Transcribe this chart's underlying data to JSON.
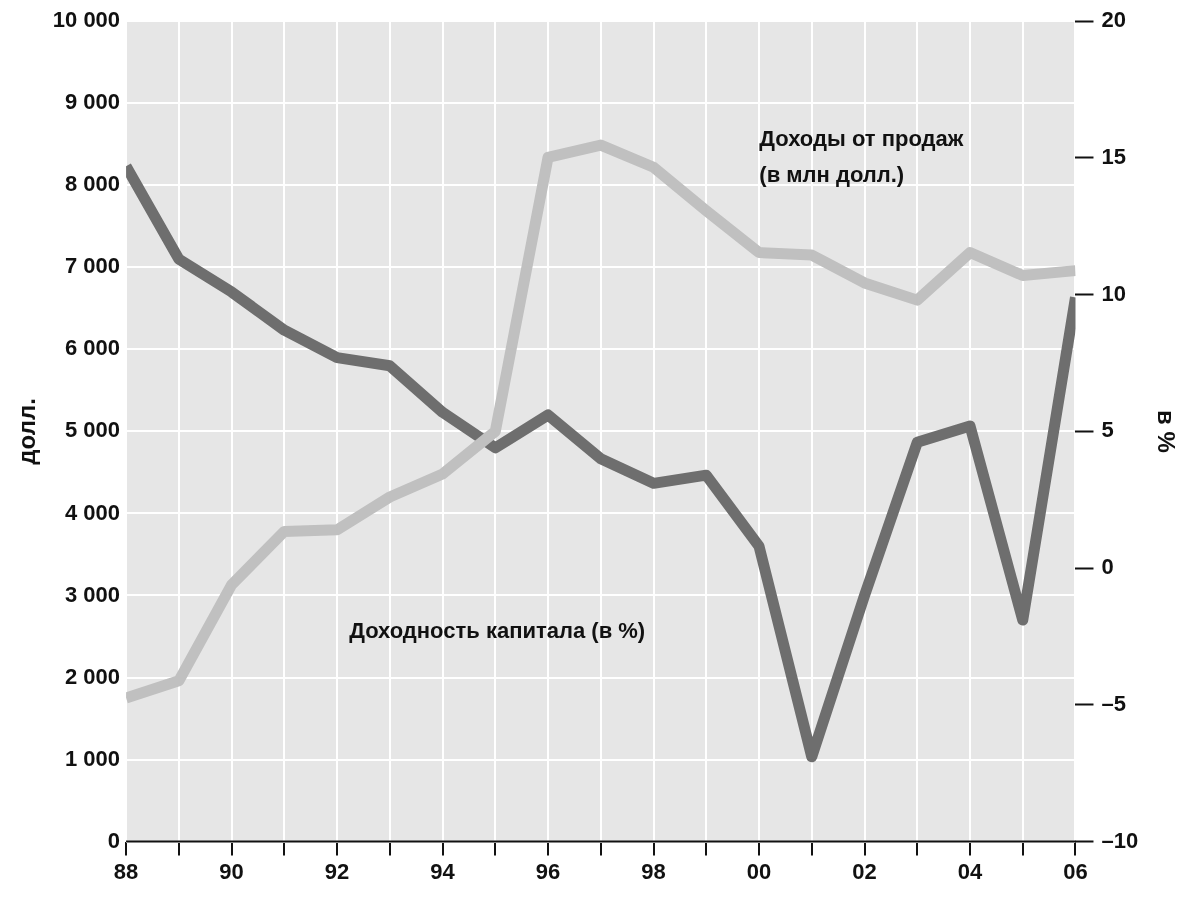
{
  "chart_data": {
    "type": "line",
    "ylabel": "долл.",
    "y2label": "в %",
    "x": [
      1988,
      1989,
      1990,
      1991,
      1992,
      1993,
      1994,
      1995,
      1996,
      1997,
      1998,
      1999,
      2000,
      2001,
      2002,
      2003,
      2004,
      2005,
      2006
    ],
    "series": [
      {
        "color": "#c0c0c0",
        "values": [
          1750,
          1960,
          3130,
          3780,
          3800,
          4200,
          4480,
          5000,
          8340,
          8490,
          8220,
          7690,
          7180,
          7150,
          6810,
          6600,
          7180,
          6900,
          6960
        ]
      },
      {
        "color": "#6e6e6e",
        "axis": "y2",
        "values": [
          14.7,
          11.3,
          10.1,
          8.7,
          7.7,
          7.4,
          5.7,
          4.4,
          5.6,
          4.0,
          3.1,
          3.4,
          0.8,
          -6.9,
          -1.0,
          4.6,
          5.2,
          -1.9,
          9.9
        ]
      }
    ],
    "xlim": [
      1988,
      2006
    ],
    "xticks": [
      {
        "value": 1988,
        "label": "88"
      },
      {
        "value": 1989,
        "label": null
      },
      {
        "value": 1990,
        "label": "90"
      },
      {
        "value": 1991,
        "label": null
      },
      {
        "value": 1992,
        "label": "92"
      },
      {
        "value": 1993,
        "label": null
      },
      {
        "value": 1994,
        "label": "94"
      },
      {
        "value": 1995,
        "label": null
      },
      {
        "value": 1996,
        "label": "96"
      },
      {
        "value": 1997,
        "label": null
      },
      {
        "value": 1998,
        "label": "98"
      },
      {
        "value": 1999,
        "label": null
      },
      {
        "value": 2000,
        "label": "00"
      },
      {
        "value": 2001,
        "label": null
      },
      {
        "value": 2002,
        "label": "02"
      },
      {
        "value": 2003,
        "label": null
      },
      {
        "value": 2004,
        "label": "04"
      },
      {
        "value": 2005,
        "label": null
      },
      {
        "value": 2006,
        "label": "06"
      }
    ],
    "ylim": [
      0,
      10000
    ],
    "yticks": [
      0,
      {
        "value": 1000,
        "label": "1 000"
      },
      {
        "value": 2000,
        "label": "2 000"
      },
      {
        "value": 3000,
        "label": "3 000"
      },
      {
        "value": 4000,
        "label": "4 000"
      },
      {
        "value": 5000,
        "label": "5 000"
      },
      {
        "value": 6000,
        "label": "6 000"
      },
      {
        "value": 7000,
        "label": "7 000"
      },
      {
        "value": 8000,
        "label": "8 000"
      },
      {
        "value": 9000,
        "label": "9 000"
      },
      {
        "value": 10000,
        "label": "10 000"
      }
    ],
    "y2lim": [
      -10,
      20
    ],
    "y2ticks": [
      {
        "value": -10,
        "label": "–10"
      },
      {
        "value": -5,
        "label": "–5"
      },
      0,
      5,
      10,
      15,
      20
    ],
    "grid": true,
    "marker": "none",
    "line_style": "solid",
    "legend": false,
    "annotations": [
      "Доходы от продаж\n(в млн долл.)",
      "Доходность капитала (в %)"
    ]
  }
}
